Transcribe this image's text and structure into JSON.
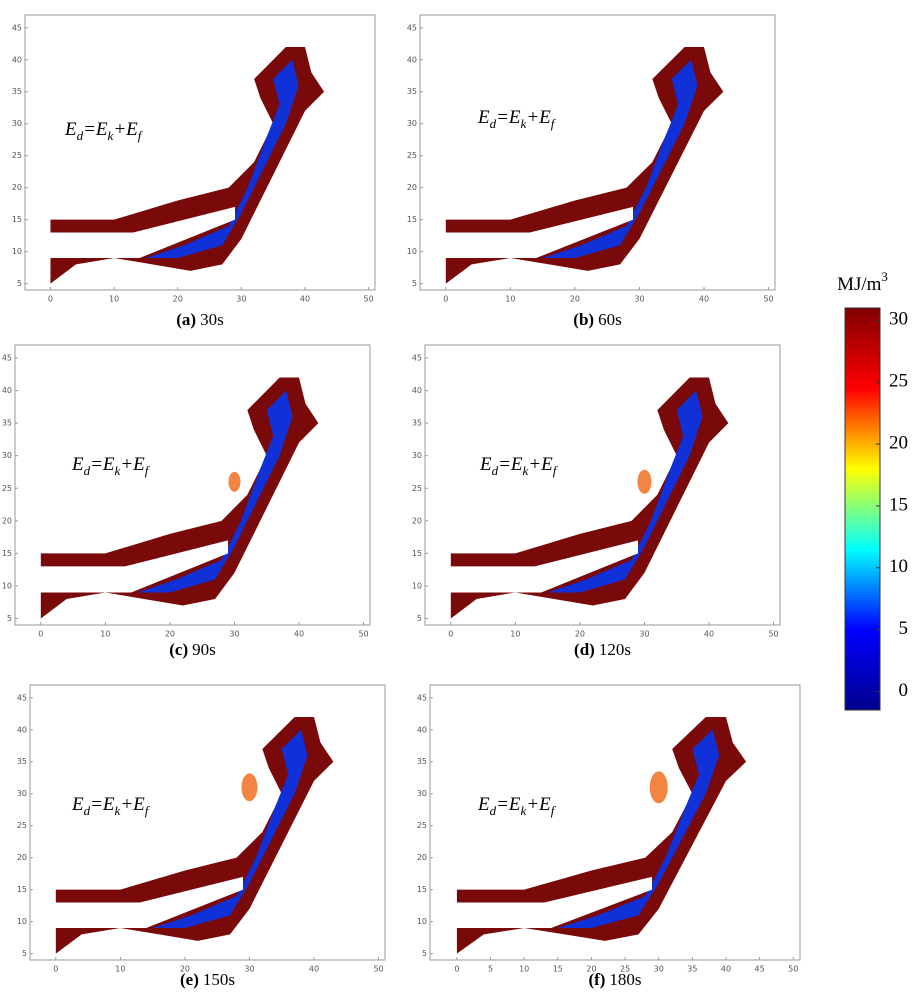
{
  "chart_data": [
    {
      "type": "map",
      "label": "(a)",
      "time": "30s",
      "annotation": [
        "E",
        "d",
        "=E",
        "k",
        "+E",
        "f"
      ],
      "xlim": [
        -4,
        51
      ],
      "ylim": [
        4,
        47
      ],
      "xticks": [
        0,
        10,
        20,
        30,
        40,
        50
      ],
      "yticks": [
        5,
        10,
        15,
        20,
        25,
        30,
        35,
        40,
        45
      ]
    },
    {
      "type": "map",
      "label": "(b)",
      "time": "60s",
      "annotation": [
        "E",
        "d",
        "=E",
        "k",
        "+E",
        "f"
      ],
      "xlim": [
        -4,
        51
      ],
      "ylim": [
        4,
        47
      ],
      "xticks": [
        0,
        10,
        20,
        30,
        40,
        50
      ],
      "yticks": [
        5,
        10,
        15,
        20,
        25,
        30,
        35,
        40,
        45
      ]
    },
    {
      "type": "map",
      "label": "(c)",
      "time": "90s",
      "annotation": [
        "E",
        "d",
        "=E",
        "k",
        "+E",
        "f"
      ],
      "xlim": [
        -4,
        51
      ],
      "ylim": [
        4,
        47
      ],
      "xticks": [
        0,
        10,
        20,
        30,
        40,
        50
      ],
      "yticks": [
        5,
        10,
        15,
        20,
        25,
        30,
        35,
        40,
        45
      ]
    },
    {
      "type": "map",
      "label": "(d)",
      "time": "120s",
      "annotation": [
        "E",
        "d",
        "=E",
        "k",
        "+E",
        "f"
      ],
      "xlim": [
        -4,
        51
      ],
      "ylim": [
        4,
        47
      ],
      "xticks": [
        0,
        10,
        20,
        30,
        40,
        50
      ],
      "yticks": [
        5,
        10,
        15,
        20,
        25,
        30,
        35,
        40,
        45
      ]
    },
    {
      "type": "map",
      "label": "(e)",
      "time": "150s",
      "annotation": [
        "E",
        "d",
        "=E",
        "k",
        "+E",
        "f"
      ],
      "xlim": [
        -4,
        51
      ],
      "ylim": [
        4,
        47
      ],
      "xticks": [
        0,
        10,
        20,
        30,
        40,
        50
      ],
      "yticks": [
        5,
        10,
        15,
        20,
        25,
        30,
        35,
        40,
        45
      ]
    },
    {
      "type": "map",
      "label": "(f)",
      "time": "180s",
      "annotation": [
        "E",
        "d",
        "=E",
        "k",
        "+E",
        "f"
      ],
      "xlim": [
        -4,
        51
      ],
      "ylim": [
        4,
        47
      ],
      "xticks": [
        0,
        5,
        10,
        15,
        20,
        25,
        30,
        35,
        40,
        45,
        50
      ],
      "yticks": [
        5,
        10,
        15,
        20,
        25,
        30,
        35,
        40,
        45
      ]
    },
    {
      "type": "colorbar",
      "title": [
        "MJ/m",
        "3"
      ],
      "ylim": [
        -1.5,
        31
      ],
      "yticks": [
        0,
        5,
        10,
        15,
        20,
        25,
        30
      ],
      "colors": [
        "#00008f",
        "#0000ff",
        "#00ffff",
        "#ffff00",
        "#ff0000",
        "#800000"
      ]
    }
  ]
}
